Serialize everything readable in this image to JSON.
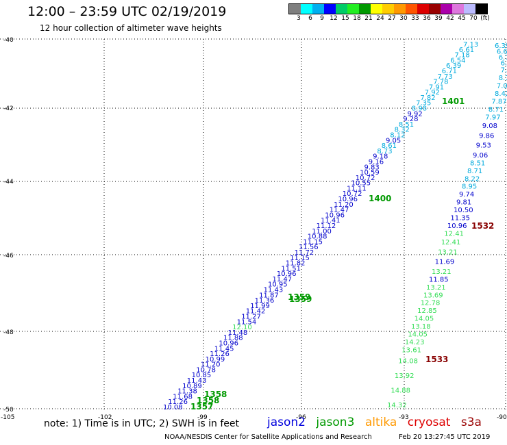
{
  "header": {
    "title": "12:00 – 23:59 UTC 02/19/2019",
    "subtitle": "12 hour collection of altimeter wave heights"
  },
  "colorbar": {
    "colors": [
      "#7f7f7f",
      "#00ffff",
      "#00b0f0",
      "#0000ff",
      "#00cc66",
      "#22ee22",
      "#009900",
      "#ffff00",
      "#ffcc00",
      "#ff9900",
      "#ff5500",
      "#dd0000",
      "#990000",
      "#aa00aa",
      "#dd77dd",
      "#bbbbff",
      "#000000"
    ],
    "labels": [
      "3",
      "6",
      "9",
      "12",
      "15",
      "18",
      "21",
      "24",
      "27",
      "30",
      "33",
      "36",
      "39",
      "42",
      "45",
      "70",
      "(ft)"
    ]
  },
  "map": {
    "lat_labels": [
      "-40",
      "-42",
      "-44",
      "-46",
      "-48",
      "-50"
    ],
    "lon_labels": [
      "-105",
      "-102",
      "-99",
      "-96",
      "-93",
      "-90"
    ]
  },
  "tracks": {
    "jason2_a": {
      "color_dark": "#0000cc",
      "color_light": "#00aadd",
      "values": [
        "10.08",
        "11.26",
        "11.68",
        "11.38",
        "10.89",
        "11.43",
        "10.85",
        "10.78",
        "11.20",
        "10.99",
        "11.26",
        "11.45",
        "10.96",
        "11.88",
        "11.48",
        "12.10",
        "11.54",
        "11.27",
        "11.42",
        "11.99",
        "11.36",
        "11.87",
        "11.43",
        "10.95",
        "11.47",
        "10.96",
        "11.51",
        "11.82",
        "11.15",
        "11.72",
        "11.56",
        "11.15",
        "10.88",
        "11.00",
        "11.12",
        "11.41",
        "10.96",
        "11.47",
        "11.20",
        "10.96",
        "10.72",
        "11.11",
        "10.55",
        "10.72",
        "10.59",
        "9.83",
        "9.16",
        "9.18",
        "8.73",
        "8.61",
        "9.05",
        "8.12",
        "8.32",
        "8.51",
        "9.28",
        "9.92",
        "8.98",
        "7.35",
        "7.82",
        "7.92",
        "7.91",
        "7.78",
        "7.73",
        "6.71",
        "6.39",
        "6.54",
        "7.18",
        "6.61",
        "7.13"
      ]
    },
    "jason2_b": {
      "values": [
        "6.39",
        "6.68",
        "6.74",
        "6.74",
        "7.18",
        "8.73",
        "7.04",
        "8.42",
        "7.87",
        "8.71",
        "7.97",
        "9.08",
        "9.86",
        "9.53",
        "9.06",
        "8.51",
        "8.71",
        "8.22",
        "8.95",
        "9.74",
        "9.81",
        "10.50",
        "11.35",
        "10.96",
        "12.41",
        "12.41",
        "13.21",
        "11.69",
        "13.21",
        "11.85",
        "13.21",
        "13.69",
        "12.78",
        "12.85",
        "14.05",
        "13.18",
        "14.05",
        "14.23",
        "13.61",
        "14.08",
        "13.92",
        "14.88",
        "14.32"
      ]
    },
    "times": {
      "t1401": "1401",
      "t1400": "1400",
      "t1359": "1359",
      "t1358": "1358",
      "t1357": "1357",
      "t1532": "1532",
      "t1533": "1533"
    }
  },
  "footer": {
    "note": "note: 1) Time is in UTC; 2) SWH is in feet",
    "legend": [
      {
        "label": "jason2",
        "color": "#0000dd"
      },
      {
        "label": "jason3",
        "color": "#009900"
      },
      {
        "label": "altika",
        "color": "#ff9900"
      },
      {
        "label": "cryosat",
        "color": "#dd0000"
      },
      {
        "label": "s3a",
        "color": "#990000"
      }
    ],
    "credit": "NOAA/NESDIS Center for Satellite Applications and Research",
    "timestamp": "Feb 20 13:27:45 UTC 2019"
  }
}
